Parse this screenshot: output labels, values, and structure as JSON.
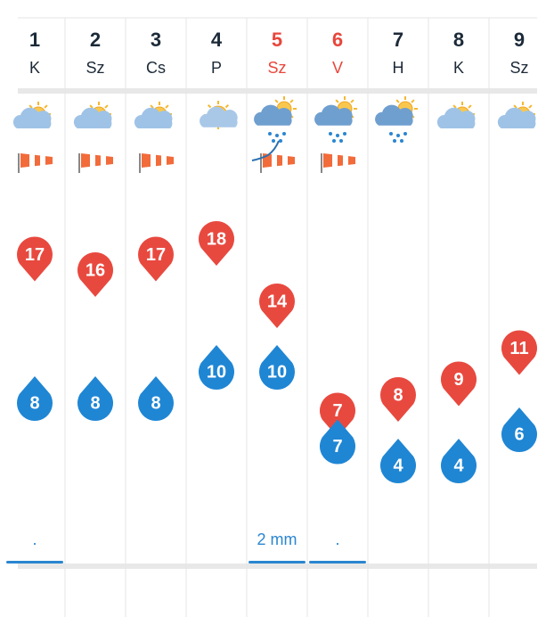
{
  "days": [
    {
      "day": 1,
      "weekday": "K",
      "weekend": false,
      "max": 17,
      "min": 8,
      "precip": "."
    },
    {
      "day": 2,
      "weekday": "Sz",
      "weekend": false,
      "max": 16,
      "min": 8,
      "precip": null
    },
    {
      "day": 3,
      "weekday": "Cs",
      "weekend": false,
      "max": 17,
      "min": 8,
      "precip": null
    },
    {
      "day": 4,
      "weekday": "P",
      "weekend": false,
      "max": 18,
      "min": 10,
      "precip": null
    },
    {
      "day": 5,
      "weekday": "Sz",
      "weekend": true,
      "max": 14,
      "min": 10,
      "precip": "2 mm"
    },
    {
      "day": 6,
      "weekday": "V",
      "weekend": true,
      "max": 7,
      "min": 7,
      "precip": "."
    },
    {
      "day": 7,
      "weekday": "H",
      "weekend": false,
      "max": 8,
      "min": 4,
      "precip": null
    },
    {
      "day": 8,
      "weekday": "K",
      "weekend": false,
      "max": 9,
      "min": 4,
      "precip": null
    },
    {
      "day": 9,
      "weekday": "Sz",
      "weekend": false,
      "max": 11,
      "min": 6,
      "precip": null
    }
  ]
}
